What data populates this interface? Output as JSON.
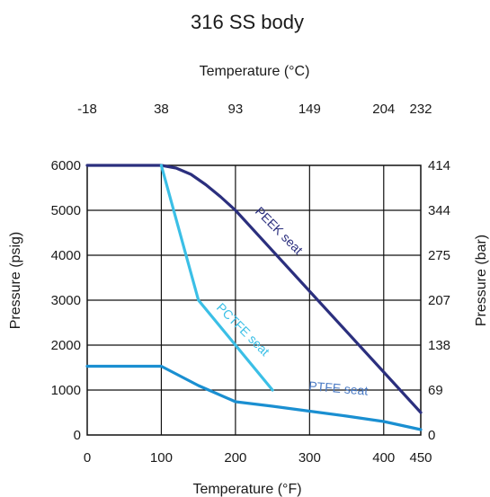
{
  "chart_data": {
    "type": "line",
    "title": "316 SS body",
    "xlabel": "Temperature (°F)",
    "ylabel": "Pressure (psig)",
    "x2label": "Temperature (°C)",
    "y2label": "Pressure (bar)",
    "xlim": [
      0,
      450
    ],
    "ylim": [
      0,
      6000
    ],
    "x_ticks": [
      0,
      100,
      200,
      300,
      400,
      450
    ],
    "y_ticks": [
      0,
      1000,
      2000,
      3000,
      4000,
      5000,
      6000
    ],
    "x2_ticks": [
      {
        "label": "-18",
        "x": 0
      },
      {
        "label": "38",
        "x": 100
      },
      {
        "label": "93",
        "x": 200
      },
      {
        "label": "149",
        "x": 300
      },
      {
        "label": "204",
        "x": 400
      },
      {
        "label": "232",
        "x": 450
      }
    ],
    "y2_ticks": [
      {
        "label": "0",
        "y": 0
      },
      {
        "label": "69",
        "y": 1000
      },
      {
        "label": "138",
        "y": 2000
      },
      {
        "label": "207",
        "y": 3000
      },
      {
        "label": "275",
        "y": 4000
      },
      {
        "label": "344",
        "y": 5000
      },
      {
        "label": "414",
        "y": 6000
      }
    ],
    "grid": true,
    "series": [
      {
        "name": "PEEK seat",
        "color": "#2b2f7e",
        "x": [
          0,
          100,
          120,
          140,
          160,
          180,
          200,
          300,
          400,
          450
        ],
        "y": [
          6000,
          6000,
          5940,
          5800,
          5570,
          5300,
          5000,
          3200,
          1400,
          500
        ]
      },
      {
        "name": "PCTFE seat",
        "color": "#3bbfe6",
        "x": [
          100,
          150,
          250
        ],
        "y": [
          6000,
          3000,
          1000
        ]
      },
      {
        "name": "PTFE seat",
        "color": "#1a8fd1",
        "x": [
          0,
          100,
          150,
          200,
          250,
          300,
          350,
          400,
          450
        ],
        "y": [
          1530,
          1530,
          1100,
          740,
          640,
          530,
          420,
          300,
          120
        ]
      }
    ]
  }
}
